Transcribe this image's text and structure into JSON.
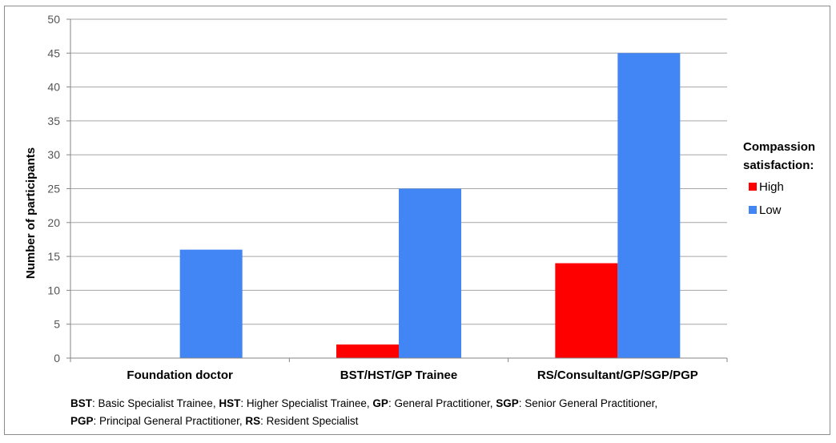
{
  "chart_data": {
    "type": "bar",
    "categories": [
      "Foundation doctor",
      "BST/HST/GP Trainee",
      "RS/Consultant/GP/SGP/PGP"
    ],
    "series": [
      {
        "name": "High",
        "color": "#ff0000",
        "values": [
          0,
          2,
          14
        ]
      },
      {
        "name": "Low",
        "color": "#4285f4",
        "values": [
          16,
          25,
          45
        ]
      }
    ],
    "ylabel": "Number of participants",
    "ylim": [
      0,
      50
    ],
    "yticks": [
      0,
      5,
      10,
      15,
      20,
      25,
      30,
      35,
      40,
      45,
      50
    ],
    "grid": true,
    "legend": {
      "title_line1": "Compassion",
      "title_line2": "satisfaction:",
      "placement": "right"
    }
  },
  "footnote": [
    {
      "abbr": "BST",
      "text": ": Basic Specialist Trainee, "
    },
    {
      "abbr": "HST",
      "text": ": Higher Specialist Trainee, "
    },
    {
      "abbr": "GP",
      "text": ": General Practitioner, "
    },
    {
      "abbr": "SGP",
      "text": ": Senior General Practitioner,"
    },
    {
      "abbr": "PGP",
      "text": ": Principal General Practitioner, "
    },
    {
      "abbr": "RS",
      "text": ": Resident Specialist"
    }
  ]
}
